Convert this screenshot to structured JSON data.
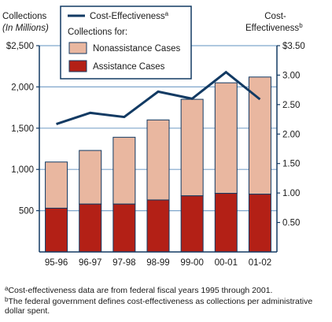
{
  "colors": {
    "navy": "#123a63",
    "nonassistance": "#e9b7a0",
    "assistance": "#b32016",
    "gridline": "#7fa6cc"
  },
  "chart_data": {
    "type": "bar",
    "stacked": true,
    "categories": [
      "95-96",
      "96-97",
      "97-98",
      "98-99",
      "99-00",
      "00-01",
      "01-02"
    ],
    "y_left": {
      "label_line1": "Collections",
      "label_line2": "(In Millions)",
      "range": [
        0,
        2500
      ],
      "ticks": [
        500,
        1000,
        1500,
        2000,
        2500
      ],
      "tick_labels": [
        "500",
        "1,000",
        "1,500",
        "2,000",
        "$2,500"
      ]
    },
    "y_right": {
      "label_line1": "Cost-",
      "label_line2": "Effectiveness",
      "label_sup": "b",
      "range": [
        0,
        3.5
      ],
      "ticks": [
        0.5,
        1.0,
        1.5,
        2.0,
        2.5,
        3.0,
        3.5
      ],
      "tick_labels": [
        "0.50",
        "1.00",
        "1.50",
        "2.00",
        "2.50",
        "3.00",
        "$3.50"
      ]
    },
    "bar_series": [
      {
        "name": "Assistance Cases",
        "values": [
          530,
          580,
          580,
          630,
          680,
          710,
          700
        ]
      },
      {
        "name": "Nonassistance Cases",
        "values": [
          560,
          650,
          810,
          970,
          1170,
          1340,
          1420
        ]
      }
    ],
    "line_series": {
      "name": "Cost-Effectiveness",
      "name_sup": "a",
      "axis": "right",
      "values": [
        2.17,
        2.36,
        2.29,
        2.72,
        2.6,
        3.05,
        2.59
      ]
    },
    "legend": {
      "position": "top-center",
      "subtitle": "Collections for:"
    },
    "grid": true
  },
  "footnotes": {
    "a_mark": "a",
    "a_text": "Cost-effectiveness data are from federal fiscal years 1995 through 2001.",
    "b_mark": "b",
    "b_text": "The federal government defines cost-effectiveness as collections per administrative dollar spent."
  }
}
